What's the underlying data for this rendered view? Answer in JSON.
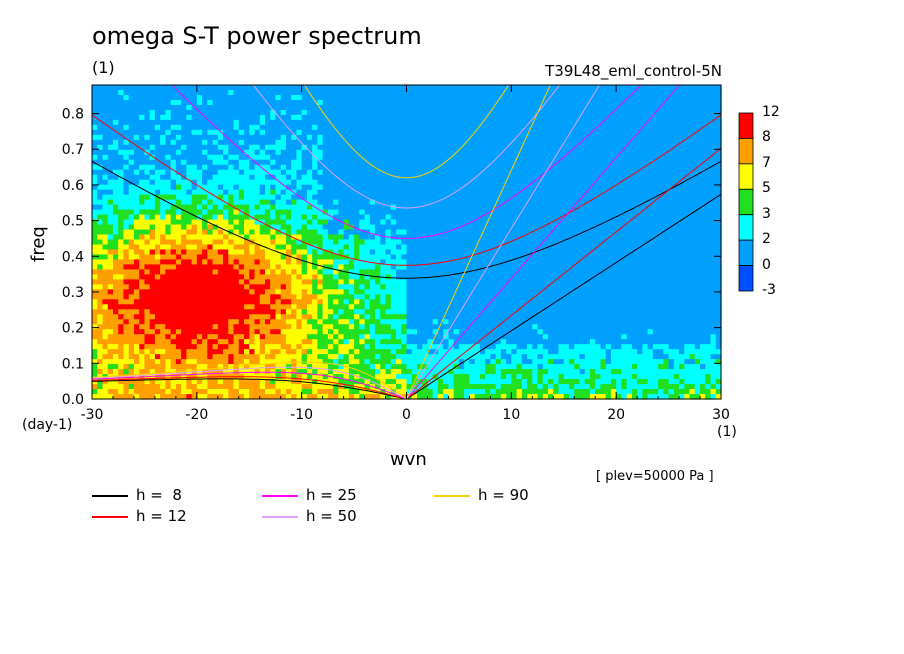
{
  "title": "omega S-T power spectrum",
  "subtitle_left": "(1)",
  "subtitle_right": "T39L48_eml_control-5N",
  "note": "[ plev=50000 Pa ]",
  "chart_data": {
    "type": "heatmap",
    "xlabel": "wvn",
    "ylabel": "freq",
    "x_unit": "(1)",
    "y_unit": "(day-1)",
    "xlim": [
      -30,
      30
    ],
    "ylim": [
      0,
      0.88
    ],
    "x_ticks": [
      -30,
      -20,
      -10,
      0,
      10,
      20,
      30
    ],
    "x_tick_labels": [
      "-30",
      "-20",
      "-10",
      "0",
      "10",
      "20",
      "30"
    ],
    "y_ticks": [
      0.0,
      0.1,
      0.2,
      0.3,
      0.4,
      0.5,
      0.6,
      0.7,
      0.8
    ],
    "y_tick_labels": [
      "0.0",
      "0.1",
      "0.2",
      "0.3",
      "0.4",
      "0.5",
      "0.6",
      "0.7",
      "0.8"
    ],
    "colorbar": {
      "levels": [
        "12",
        "8",
        "7",
        "5",
        "3",
        "2",
        "0",
        "-3"
      ],
      "colors": [
        "#ff0000",
        "#ffa000",
        "#ffff00",
        "#20e020",
        "#00ffff",
        "#00a0ff",
        "#0050ff"
      ]
    },
    "dispersion_curves": [
      {
        "name": "h =  8",
        "color": "#000000",
        "h": 8
      },
      {
        "name": "h = 12",
        "color": "#ff0000",
        "h": 12
      },
      {
        "name": "h = 25",
        "color": "#ff00ff",
        "h": 25
      },
      {
        "name": "h = 50",
        "color": "#e0a0ff",
        "h": 50
      },
      {
        "name": "h = 90",
        "color": "#ffd000",
        "h": 90
      }
    ]
  }
}
